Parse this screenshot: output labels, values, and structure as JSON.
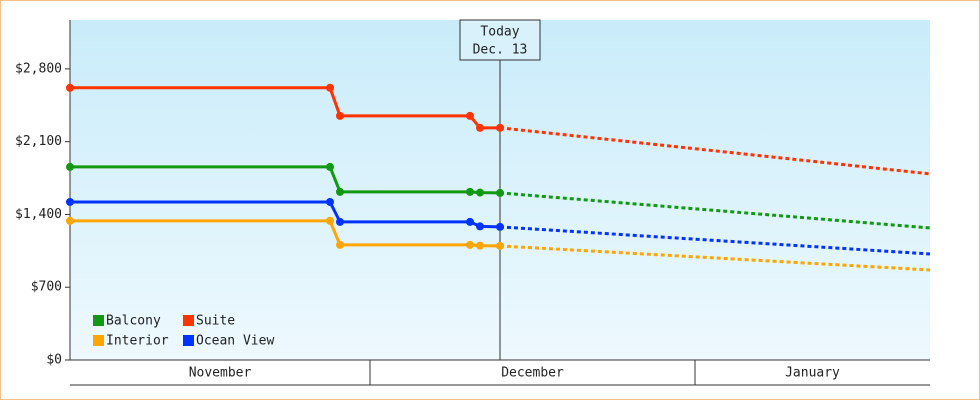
{
  "chart_data": {
    "type": "line",
    "x": [
      0,
      26,
      27,
      40,
      41,
      43
    ],
    "forecast_x": [
      43,
      86
    ],
    "xlim": [
      0,
      86
    ],
    "months": [
      {
        "label": "November",
        "start": 0,
        "end": 30
      },
      {
        "label": "December",
        "start": 30,
        "end": 62.5
      },
      {
        "label": "January",
        "start": 62.5,
        "end": 86
      }
    ],
    "today": {
      "x": 43,
      "label": "Today",
      "date": "Dec. 13"
    },
    "ylim": [
      0,
      3270
    ],
    "yticks": [
      {
        "value": 0,
        "label": "$0"
      },
      {
        "value": 700,
        "label": "$700"
      },
      {
        "value": 1400,
        "label": "$1,400"
      },
      {
        "value": 2100,
        "label": "$2,100"
      },
      {
        "value": 2800,
        "label": "$2,800"
      }
    ],
    "series": [
      {
        "name": "Balcony",
        "color": "#119911",
        "values": [
          1857,
          1857,
          1617,
          1617,
          1610,
          1607
        ],
        "forecast": [
          1607,
          1270
        ]
      },
      {
        "name": "Suite",
        "color": "#ff3300",
        "values": [
          2618,
          2618,
          2348,
          2348,
          2233,
          2233
        ],
        "forecast": [
          2233,
          1790
        ]
      },
      {
        "name": "Interior",
        "color": "#ffa500",
        "values": [
          1338,
          1338,
          1107,
          1107,
          1100,
          1097
        ],
        "forecast": [
          1097,
          866
        ]
      },
      {
        "name": "Ocean View",
        "color": "#0033ff",
        "values": [
          1520,
          1520,
          1328,
          1328,
          1285,
          1280
        ],
        "forecast": [
          1280,
          1020
        ]
      }
    ]
  }
}
